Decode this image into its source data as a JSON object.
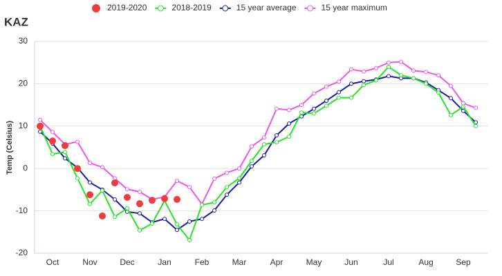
{
  "chart_data": {
    "type": "line",
    "title": "KAZ",
    "y_label": "Temp (Celsius)",
    "categories": [
      null,
      "Oct",
      null,
      null,
      "Nov",
      null,
      null,
      "Dec",
      null,
      null,
      "Jan",
      null,
      null,
      "Feb",
      null,
      null,
      "Mar",
      null,
      null,
      "Apr",
      null,
      null,
      "May",
      null,
      null,
      "Jun",
      null,
      null,
      "Jul",
      null,
      null,
      "Aug",
      null,
      null,
      "Sep",
      null
    ],
    "ylim": [
      -20,
      30
    ],
    "yticks": [
      -20,
      -10,
      0,
      10,
      20,
      30
    ],
    "grid": true,
    "legend": "top",
    "series": [
      {
        "name": "2019-2020",
        "color": "#f03c3c",
        "style": "markers",
        "values": [
          10,
          6.5,
          5.4,
          0,
          -6.2,
          -11.2,
          -3.4,
          -6.8,
          -8.3,
          -7.5,
          -7.1,
          -7.3,
          null,
          null,
          null,
          null,
          null,
          null,
          null,
          null,
          null,
          null,
          null,
          null,
          null,
          null,
          null,
          null,
          null,
          null,
          null,
          null,
          null,
          null,
          null,
          null
        ]
      },
      {
        "name": "2018-2019",
        "color": "#22e622",
        "style": "line",
        "values": [
          10,
          3.4,
          3.9,
          -2.3,
          -8.4,
          -5.2,
          -11.4,
          -9.4,
          -14.6,
          -13,
          -7.6,
          -13.2,
          -16.9,
          -8.6,
          -8,
          -4.4,
          -2.3,
          1.8,
          5.7,
          6.2,
          7.5,
          13.2,
          13,
          14.8,
          16.7,
          16.7,
          19.7,
          20.8,
          24,
          22,
          21.3,
          20,
          17.9,
          12.6,
          14.6,
          10
        ]
      },
      {
        "name": "15 year average",
        "color": "#1a1aa8",
        "style": "line",
        "values": [
          8.7,
          5.9,
          2.4,
          0.2,
          -3.3,
          -5,
          -7.3,
          -10.2,
          -10.6,
          -12.7,
          -11.9,
          -14.5,
          -12.5,
          -11.9,
          -9.9,
          -6.2,
          -3.3,
          0.5,
          3.1,
          7.8,
          10.6,
          12.3,
          14.1,
          16,
          18,
          20,
          20.6,
          21,
          21.8,
          21.3,
          21.3,
          20.3,
          18.5,
          16.6,
          13.6,
          10.9
        ]
      },
      {
        "name": "15 year maximum",
        "color": "#ee55ee",
        "style": "line",
        "values": [
          11.5,
          8.6,
          5.7,
          6.3,
          1.3,
          0.3,
          -2.3,
          -4.9,
          -5.5,
          -7.3,
          -6.7,
          -2.9,
          -4.4,
          -8.4,
          -2.4,
          -1,
          0,
          5.2,
          7.3,
          14.1,
          13.8,
          15,
          17.7,
          19.3,
          20.5,
          23.4,
          22.9,
          23.7,
          25,
          25.2,
          23.1,
          22.8,
          22,
          19.5,
          15.4,
          14.3
        ]
      }
    ]
  }
}
